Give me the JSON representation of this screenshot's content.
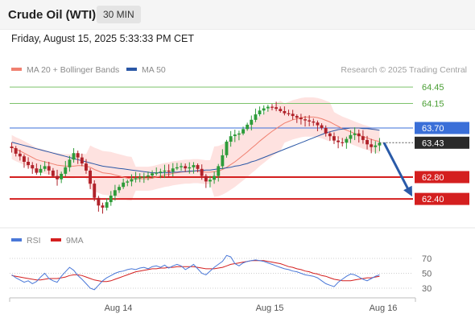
{
  "header": {
    "title": "Crude Oil (WTI)",
    "timeframe": "30 MIN",
    "datetime": "Friday, August 15, 2025 5:33:33 PM CET"
  },
  "attribution": "Research © 2025 Trading Central",
  "colors": {
    "up": "#2e9c3a",
    "down": "#b0222a",
    "ma20": "#f08070",
    "ma50": "#2a57a6",
    "bands_fill": "#fdd8d6",
    "resistance_line": "#7cc26b",
    "resistance_text": "#4a9e34",
    "pivot": "#3a6fd8",
    "support": "#d41f1f",
    "last_price_bg": "#2a2a2a",
    "rsi": "#4a78d8",
    "rsi_ma": "#d41f1f"
  },
  "chart_data": [
    {
      "type": "candlestick",
      "legend": [
        {
          "label": "MA 20 + Bollinger Bands",
          "color": "#f08070"
        },
        {
          "label": "MA 50",
          "color": "#2a57a6"
        }
      ],
      "ylim": [
        62.1,
        64.6
      ],
      "x_ticks": [
        "Aug 14",
        "Aug 15",
        "Aug 16"
      ],
      "levels": [
        {
          "value": 64.45,
          "label": "64.45",
          "role": "resistance"
        },
        {
          "value": 64.15,
          "label": "64.15",
          "role": "resistance"
        },
        {
          "value": 63.7,
          "label": "63.70",
          "role": "pivot"
        },
        {
          "value": 62.8,
          "label": "62.80",
          "role": "support"
        },
        {
          "value": 62.4,
          "label": "62.40",
          "role": "support"
        }
      ],
      "last_price": {
        "value": 63.43,
        "label": "63.43"
      },
      "forecast_arrow": {
        "from": 63.43,
        "to": 62.4
      },
      "closes": [
        63.33,
        63.23,
        63.18,
        63.08,
        63.02,
        62.96,
        62.88,
        62.95,
        63.0,
        62.92,
        62.82,
        62.76,
        62.86,
        62.98,
        63.12,
        63.24,
        63.16,
        63.05,
        62.92,
        62.68,
        62.42,
        62.28,
        62.24,
        62.34,
        62.46,
        62.56,
        62.62,
        62.7,
        62.72,
        62.76,
        62.78,
        62.8,
        62.81,
        62.83,
        62.87,
        62.88,
        62.9,
        62.92,
        62.9,
        62.96,
        62.98,
        63.0,
        62.96,
        62.98,
        63.02,
        62.95,
        62.82,
        62.72,
        62.75,
        62.82,
        63.0,
        63.2,
        63.45,
        63.55,
        63.58,
        63.6,
        63.68,
        63.76,
        63.85,
        63.95,
        64.02,
        64.06,
        64.09,
        64.08,
        64.05,
        64.01,
        63.97,
        63.96,
        63.92,
        63.89,
        63.86,
        63.84,
        63.82,
        63.8,
        63.75,
        63.7,
        63.6,
        63.55,
        63.47,
        63.44,
        63.43,
        63.5,
        63.57,
        63.6,
        63.55,
        63.48,
        63.4,
        63.35,
        63.38,
        63.43
      ],
      "ma20": [
        63.35,
        63.31,
        63.28,
        63.24,
        63.2,
        63.16,
        63.12,
        63.1,
        63.08,
        63.06,
        63.04,
        63.02,
        63.01,
        63.0,
        63.0,
        63.0,
        63.01,
        63.01,
        63.0,
        62.98,
        62.94,
        62.91,
        62.88,
        62.87,
        62.86,
        62.84,
        62.82,
        62.8,
        62.78,
        62.77,
        62.77,
        62.77,
        62.77,
        62.77,
        62.78,
        62.8,
        62.82,
        62.84,
        62.85,
        62.87,
        62.88,
        62.89,
        62.9,
        62.9,
        62.91,
        62.91,
        62.9,
        62.89,
        62.89,
        62.9,
        62.91,
        62.94,
        62.98,
        63.03,
        63.08,
        63.14,
        63.2,
        63.26,
        63.33,
        63.39,
        63.46,
        63.52,
        63.58,
        63.64,
        63.69,
        63.74,
        63.79,
        63.82,
        63.85,
        63.87,
        63.89,
        63.9,
        63.9,
        63.9,
        63.89,
        63.87,
        63.84,
        63.81,
        63.77,
        63.73,
        63.69,
        63.66,
        63.63,
        63.6,
        63.57,
        63.54,
        63.52,
        63.49,
        63.47,
        63.45
      ],
      "ma50": [
        63.44,
        63.42,
        63.4,
        63.38,
        63.36,
        63.34,
        63.32,
        63.3,
        63.28,
        63.26,
        63.24,
        63.22,
        63.2,
        63.18,
        63.16,
        63.14,
        63.12,
        63.1,
        63.08,
        63.06,
        63.04,
        63.02,
        63.0,
        62.99,
        62.98,
        62.97,
        62.96,
        62.95,
        62.94,
        62.93,
        62.92,
        62.91,
        62.9,
        62.89,
        62.88,
        62.88,
        62.88,
        62.88,
        62.88,
        62.89,
        62.89,
        62.9,
        62.9,
        62.91,
        62.91,
        62.92,
        62.92,
        62.93,
        62.93,
        62.94,
        62.95,
        62.96,
        62.97,
        62.98,
        63.0,
        63.01,
        63.03,
        63.05,
        63.08,
        63.1,
        63.13,
        63.16,
        63.19,
        63.22,
        63.25,
        63.28,
        63.31,
        63.34,
        63.37,
        63.4,
        63.43,
        63.46,
        63.49,
        63.52,
        63.55,
        63.58,
        63.61,
        63.63,
        63.65,
        63.67,
        63.68,
        63.69,
        63.7,
        63.7,
        63.7,
        63.69,
        63.69,
        63.68,
        63.67,
        63.66
      ]
    },
    {
      "type": "line",
      "legend": [
        {
          "label": "RSI",
          "color": "#4a78d8"
        },
        {
          "label": "9MA",
          "color": "#d41f1f"
        }
      ],
      "ylim": [
        20,
        80
      ],
      "y_ticks": [
        70,
        50,
        30
      ],
      "rsi": [
        48,
        44,
        41,
        38,
        40,
        36,
        39,
        45,
        50,
        43,
        40,
        38,
        46,
        52,
        58,
        54,
        47,
        42,
        36,
        30,
        28,
        34,
        40,
        44,
        47,
        50,
        52,
        53,
        55,
        56,
        55,
        57,
        58,
        56,
        59,
        60,
        58,
        61,
        57,
        60,
        62,
        60,
        55,
        58,
        62,
        56,
        50,
        48,
        53,
        58,
        62,
        66,
        74,
        72,
        63,
        60,
        64,
        66,
        67,
        68,
        67,
        66,
        64,
        62,
        60,
        58,
        56,
        55,
        53,
        52,
        50,
        48,
        47,
        46,
        44,
        40,
        36,
        34,
        32,
        38,
        42,
        46,
        49,
        48,
        45,
        42,
        40,
        43,
        46,
        48
      ],
      "ma9": [
        47,
        46,
        45,
        44,
        43,
        42,
        41,
        41,
        42,
        43,
        43,
        43,
        44,
        45,
        47,
        48,
        48,
        47,
        45,
        43,
        41,
        40,
        39,
        39,
        40,
        42,
        44,
        46,
        48,
        50,
        52,
        53,
        54,
        55,
        56,
        56,
        57,
        57,
        58,
        58,
        59,
        59,
        59,
        59,
        59,
        58,
        57,
        56,
        56,
        56,
        57,
        58,
        60,
        62,
        63,
        64,
        65,
        66,
        67,
        67,
        67,
        67,
        66,
        65,
        64,
        63,
        61,
        59,
        58,
        56,
        55,
        53,
        52,
        50,
        49,
        47,
        46,
        44,
        42,
        41,
        40,
        40,
        40,
        41,
        42,
        43,
        44,
        44,
        45,
        46
      ]
    }
  ]
}
